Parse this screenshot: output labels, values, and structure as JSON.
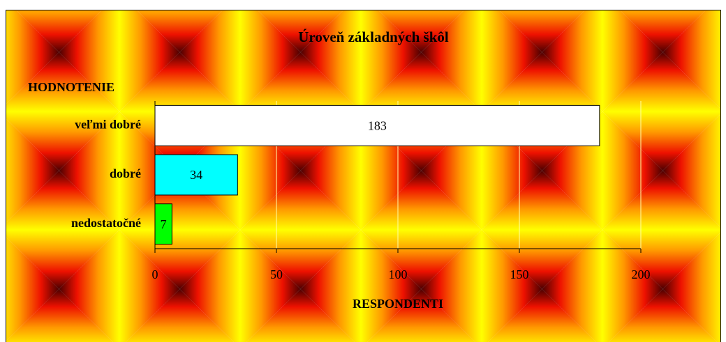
{
  "chart_data": {
    "type": "bar",
    "orientation": "horizontal",
    "title": "Úroveň základných škôl",
    "ylabel": "HODNOTENIE",
    "xlabel": "RESPONDENTI",
    "categories": [
      "veľmi dobré",
      "dobré",
      "nedostatočné"
    ],
    "values": [
      183,
      34,
      7
    ],
    "colors": [
      "#ffffff",
      "#00ffff",
      "#00ff00"
    ],
    "xlim": [
      0,
      200
    ],
    "xticks": [
      0,
      50,
      100,
      150,
      200
    ],
    "grid": true
  }
}
